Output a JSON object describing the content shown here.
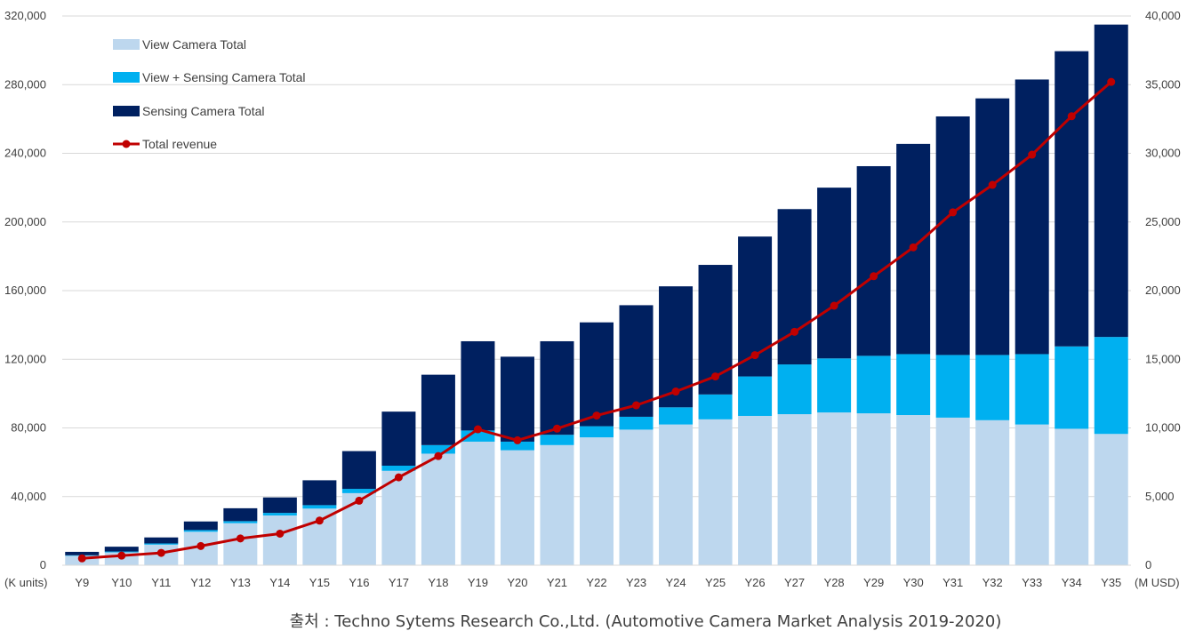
{
  "chart_data": {
    "type": "bar",
    "stacked": true,
    "categories": [
      "Y9",
      "Y10",
      "Y11",
      "Y12",
      "Y13",
      "Y14",
      "Y15",
      "Y16",
      "Y17",
      "Y18",
      "Y19",
      "Y20",
      "Y21",
      "Y22",
      "Y23",
      "Y24",
      "Y25",
      "Y26",
      "Y27",
      "Y28",
      "Y29",
      "Y30",
      "Y31",
      "Y32",
      "Y33",
      "Y34",
      "Y35"
    ],
    "series": [
      {
        "name": "View Camera Total",
        "color": "#bdd7ee",
        "values": [
          5500,
          7500,
          12000,
          19500,
          24500,
          29000,
          33000,
          42000,
          55000,
          65000,
          72000,
          67000,
          70000,
          74500,
          79000,
          82000,
          85000,
          87000,
          88000,
          89000,
          88500,
          87500,
          86000,
          84500,
          82000,
          79500,
          76500
        ]
      },
      {
        "name": "View + Sensing Camera Total",
        "color": "#00b0f0",
        "values": [
          300,
          500,
          700,
          1000,
          1200,
          1500,
          2000,
          2500,
          3000,
          5000,
          6500,
          5000,
          6000,
          6500,
          7500,
          10000,
          14500,
          23000,
          29000,
          31500,
          33500,
          35500,
          36500,
          38000,
          41000,
          48000,
          56500
        ]
      },
      {
        "name": "Sensing Camera Total",
        "color": "#002060",
        "values": [
          2000,
          2800,
          3500,
          5000,
          7500,
          9000,
          14500,
          22000,
          31500,
          41000,
          52000,
          49500,
          54500,
          60500,
          65000,
          70500,
          75500,
          81500,
          90500,
          99500,
          110500,
          122500,
          139000,
          149500,
          160000,
          172000,
          182000
        ]
      }
    ],
    "line": {
      "name": "Total revenue",
      "color": "#c00000",
      "values": [
        500,
        700,
        900,
        1400,
        1950,
        2300,
        3250,
        4700,
        6400,
        7950,
        9900,
        9100,
        9950,
        10900,
        11650,
        12650,
        13750,
        15300,
        17000,
        18900,
        21050,
        23150,
        25700,
        27700,
        29900,
        32700,
        35200
      ]
    },
    "y_left": {
      "min": 0,
      "max": 320000,
      "step": 40000,
      "unit_label": "(K units)",
      "ticks": [
        "0",
        "40,000",
        "80,000",
        "120,000",
        "160,000",
        "200,000",
        "240,000",
        "280,000",
        "320,000"
      ]
    },
    "y_right": {
      "min": 0,
      "max": 40000,
      "step": 5000,
      "unit_label": "(M USD)",
      "ticks": [
        "0",
        "5,000",
        "10,000",
        "15,000",
        "20,000",
        "25,000",
        "30,000",
        "35,000",
        "40,000"
      ]
    },
    "legend": [
      "View Camera Total",
      "View + Sensing Camera Total",
      "Sensing Camera Total",
      "Total revenue"
    ],
    "legend_position": "top-left",
    "grid": true,
    "source": "출처 : Techno Sytems Research Co.,Ltd. (Automotive Camera Market Analysis 2019-2020)"
  }
}
